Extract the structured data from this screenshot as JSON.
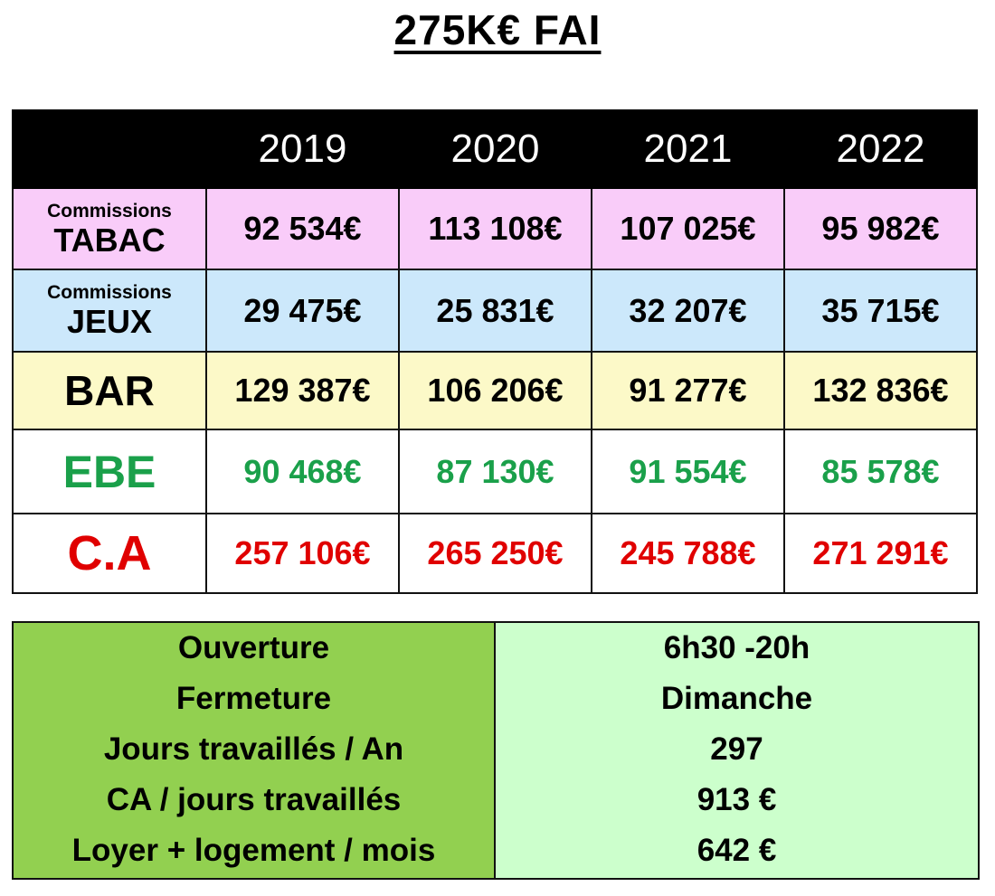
{
  "title": "275K€ FAI",
  "years": [
    "2019",
    "2020",
    "2021",
    "2022"
  ],
  "rows": {
    "tabac": {
      "small": "Commissions",
      "label": "TABAC",
      "values": [
        "92 534€",
        "113 108€",
        "107 025€",
        "95 982€"
      ]
    },
    "jeux": {
      "small": "Commissions",
      "label": "JEUX",
      "values": [
        "29 475€",
        "25 831€",
        "32 207€",
        "35 715€"
      ]
    },
    "bar": {
      "label": "BAR",
      "values": [
        "129 387€",
        "106 206€",
        "91 277€",
        "132 836€"
      ]
    },
    "ebe": {
      "label": "EBE",
      "values": [
        "90 468€",
        "87 130€",
        "91 554€",
        "85 578€"
      ]
    },
    "ca": {
      "label": "C.A",
      "values": [
        "257 106€",
        "265 250€",
        "245 788€",
        "271 291€"
      ]
    }
  },
  "info": {
    "labels": [
      "Ouverture",
      "Fermeture",
      "Jours travaillés / An",
      "CA / jours travaillés",
      "Loyer + logement / mois"
    ],
    "values": [
      "6h30 -20h",
      "Dimanche",
      "297",
      "913 €",
      "642 €"
    ]
  },
  "colors": {
    "tabac_bg": "#f9ccf9",
    "jeux_bg": "#cce8fb",
    "bar_bg": "#fcf9c8",
    "ebe_text": "#1aa04a",
    "ca_text": "#e00000",
    "info_left_bg": "#92d050",
    "info_right_bg": "#ccffcc"
  }
}
